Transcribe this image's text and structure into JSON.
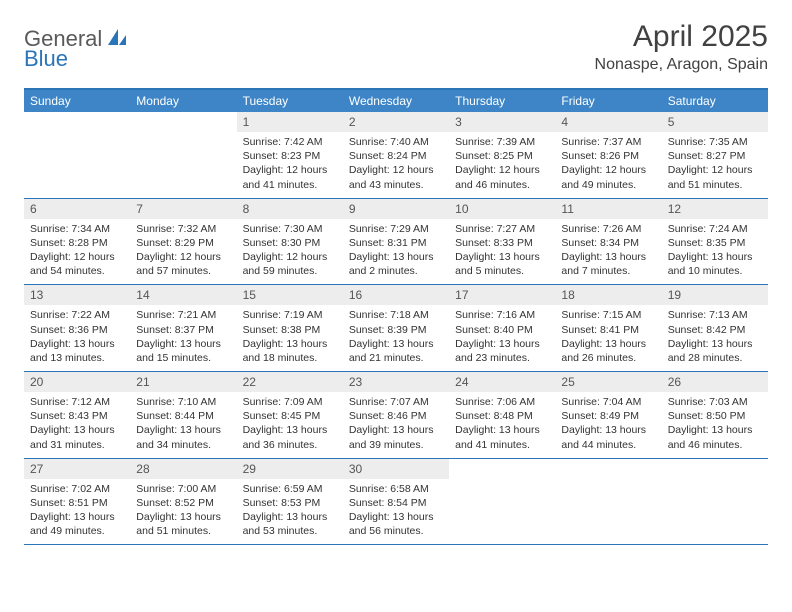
{
  "logo": {
    "part1": "General",
    "part2": "Blue"
  },
  "title": "April 2025",
  "location": "Nonaspe, Aragon, Spain",
  "colors": {
    "header_bar": "#3d85c6",
    "accent_line": "#2a74b8",
    "daynum_bg": "#ededed",
    "text": "#333333"
  },
  "weekdays": [
    "Sunday",
    "Monday",
    "Tuesday",
    "Wednesday",
    "Thursday",
    "Friday",
    "Saturday"
  ],
  "weeks": [
    [
      null,
      null,
      {
        "n": "1",
        "sunrise": "7:42 AM",
        "sunset": "8:23 PM",
        "day_h": "12",
        "day_m": "41"
      },
      {
        "n": "2",
        "sunrise": "7:40 AM",
        "sunset": "8:24 PM",
        "day_h": "12",
        "day_m": "43"
      },
      {
        "n": "3",
        "sunrise": "7:39 AM",
        "sunset": "8:25 PM",
        "day_h": "12",
        "day_m": "46"
      },
      {
        "n": "4",
        "sunrise": "7:37 AM",
        "sunset": "8:26 PM",
        "day_h": "12",
        "day_m": "49"
      },
      {
        "n": "5",
        "sunrise": "7:35 AM",
        "sunset": "8:27 PM",
        "day_h": "12",
        "day_m": "51"
      }
    ],
    [
      {
        "n": "6",
        "sunrise": "7:34 AM",
        "sunset": "8:28 PM",
        "day_h": "12",
        "day_m": "54"
      },
      {
        "n": "7",
        "sunrise": "7:32 AM",
        "sunset": "8:29 PM",
        "day_h": "12",
        "day_m": "57"
      },
      {
        "n": "8",
        "sunrise": "7:30 AM",
        "sunset": "8:30 PM",
        "day_h": "12",
        "day_m": "59"
      },
      {
        "n": "9",
        "sunrise": "7:29 AM",
        "sunset": "8:31 PM",
        "day_h": "13",
        "day_m": "2"
      },
      {
        "n": "10",
        "sunrise": "7:27 AM",
        "sunset": "8:33 PM",
        "day_h": "13",
        "day_m": "5"
      },
      {
        "n": "11",
        "sunrise": "7:26 AM",
        "sunset": "8:34 PM",
        "day_h": "13",
        "day_m": "7"
      },
      {
        "n": "12",
        "sunrise": "7:24 AM",
        "sunset": "8:35 PM",
        "day_h": "13",
        "day_m": "10"
      }
    ],
    [
      {
        "n": "13",
        "sunrise": "7:22 AM",
        "sunset": "8:36 PM",
        "day_h": "13",
        "day_m": "13"
      },
      {
        "n": "14",
        "sunrise": "7:21 AM",
        "sunset": "8:37 PM",
        "day_h": "13",
        "day_m": "15"
      },
      {
        "n": "15",
        "sunrise": "7:19 AM",
        "sunset": "8:38 PM",
        "day_h": "13",
        "day_m": "18"
      },
      {
        "n": "16",
        "sunrise": "7:18 AM",
        "sunset": "8:39 PM",
        "day_h": "13",
        "day_m": "21"
      },
      {
        "n": "17",
        "sunrise": "7:16 AM",
        "sunset": "8:40 PM",
        "day_h": "13",
        "day_m": "23"
      },
      {
        "n": "18",
        "sunrise": "7:15 AM",
        "sunset": "8:41 PM",
        "day_h": "13",
        "day_m": "26"
      },
      {
        "n": "19",
        "sunrise": "7:13 AM",
        "sunset": "8:42 PM",
        "day_h": "13",
        "day_m": "28"
      }
    ],
    [
      {
        "n": "20",
        "sunrise": "7:12 AM",
        "sunset": "8:43 PM",
        "day_h": "13",
        "day_m": "31"
      },
      {
        "n": "21",
        "sunrise": "7:10 AM",
        "sunset": "8:44 PM",
        "day_h": "13",
        "day_m": "34"
      },
      {
        "n": "22",
        "sunrise": "7:09 AM",
        "sunset": "8:45 PM",
        "day_h": "13",
        "day_m": "36"
      },
      {
        "n": "23",
        "sunrise": "7:07 AM",
        "sunset": "8:46 PM",
        "day_h": "13",
        "day_m": "39"
      },
      {
        "n": "24",
        "sunrise": "7:06 AM",
        "sunset": "8:48 PM",
        "day_h": "13",
        "day_m": "41"
      },
      {
        "n": "25",
        "sunrise": "7:04 AM",
        "sunset": "8:49 PM",
        "day_h": "13",
        "day_m": "44"
      },
      {
        "n": "26",
        "sunrise": "7:03 AM",
        "sunset": "8:50 PM",
        "day_h": "13",
        "day_m": "46"
      }
    ],
    [
      {
        "n": "27",
        "sunrise": "7:02 AM",
        "sunset": "8:51 PM",
        "day_h": "13",
        "day_m": "49"
      },
      {
        "n": "28",
        "sunrise": "7:00 AM",
        "sunset": "8:52 PM",
        "day_h": "13",
        "day_m": "51"
      },
      {
        "n": "29",
        "sunrise": "6:59 AM",
        "sunset": "8:53 PM",
        "day_h": "13",
        "day_m": "53"
      },
      {
        "n": "30",
        "sunrise": "6:58 AM",
        "sunset": "8:54 PM",
        "day_h": "13",
        "day_m": "56"
      },
      null,
      null,
      null
    ]
  ],
  "labels": {
    "sunrise": "Sunrise:",
    "sunset": "Sunset:",
    "daylight": "Daylight:",
    "hours": "hours",
    "and": "and",
    "minutes": "minutes."
  }
}
